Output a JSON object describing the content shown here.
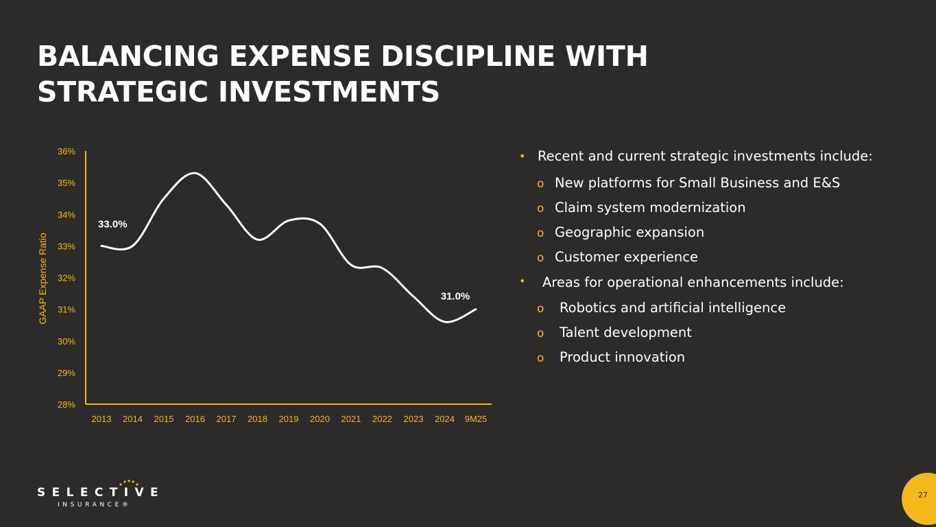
{
  "title": {
    "line1": "BALANCING EXPENSE DISCIPLINE WITH",
    "line2": "STRATEGIC INVESTMENTS"
  },
  "colors": {
    "background": "#2d2b2a",
    "accent": "#f5b81c",
    "line": "#ffffff",
    "text": "#ffffff"
  },
  "chart_data": {
    "type": "line",
    "title": "",
    "xlabel": "",
    "ylabel": "GAAP Expense Ratio",
    "categories": [
      "2013",
      "2014",
      "2015",
      "2016",
      "2017",
      "2018",
      "2019",
      "2020",
      "2021",
      "2022",
      "2023",
      "2024",
      "9M25"
    ],
    "series": [
      {
        "name": "GAAP Expense Ratio",
        "values": [
          33.0,
          33.0,
          34.5,
          35.3,
          34.3,
          33.2,
          33.8,
          33.7,
          32.4,
          32.3,
          31.4,
          30.6,
          31.0
        ]
      }
    ],
    "ylim": [
      28,
      36
    ],
    "yticks": [
      "28%",
      "29%",
      "30%",
      "31%",
      "32%",
      "33%",
      "34%",
      "35%",
      "36%"
    ],
    "data_labels": [
      {
        "index": 0,
        "text": "33.0%"
      },
      {
        "index": 12,
        "text": "31.0%"
      }
    ],
    "grid": false
  },
  "bullets": {
    "investments_heading": "Recent and current strategic investments include:",
    "investments": [
      "New platforms for Small Business and E&S",
      "Claim system modernization",
      "Geographic expansion",
      "Customer experience"
    ],
    "enhancements_heading": "Areas for operational enhancements include:",
    "enhancements": [
      "Robotics and artificial intelligence",
      "Talent development",
      "Product innovation"
    ],
    "bullet_symbol": "•",
    "sub_symbol": "o"
  },
  "logo": {
    "main": "SELECTIVE",
    "sub": "INSURANCE®"
  },
  "page_number": "27"
}
